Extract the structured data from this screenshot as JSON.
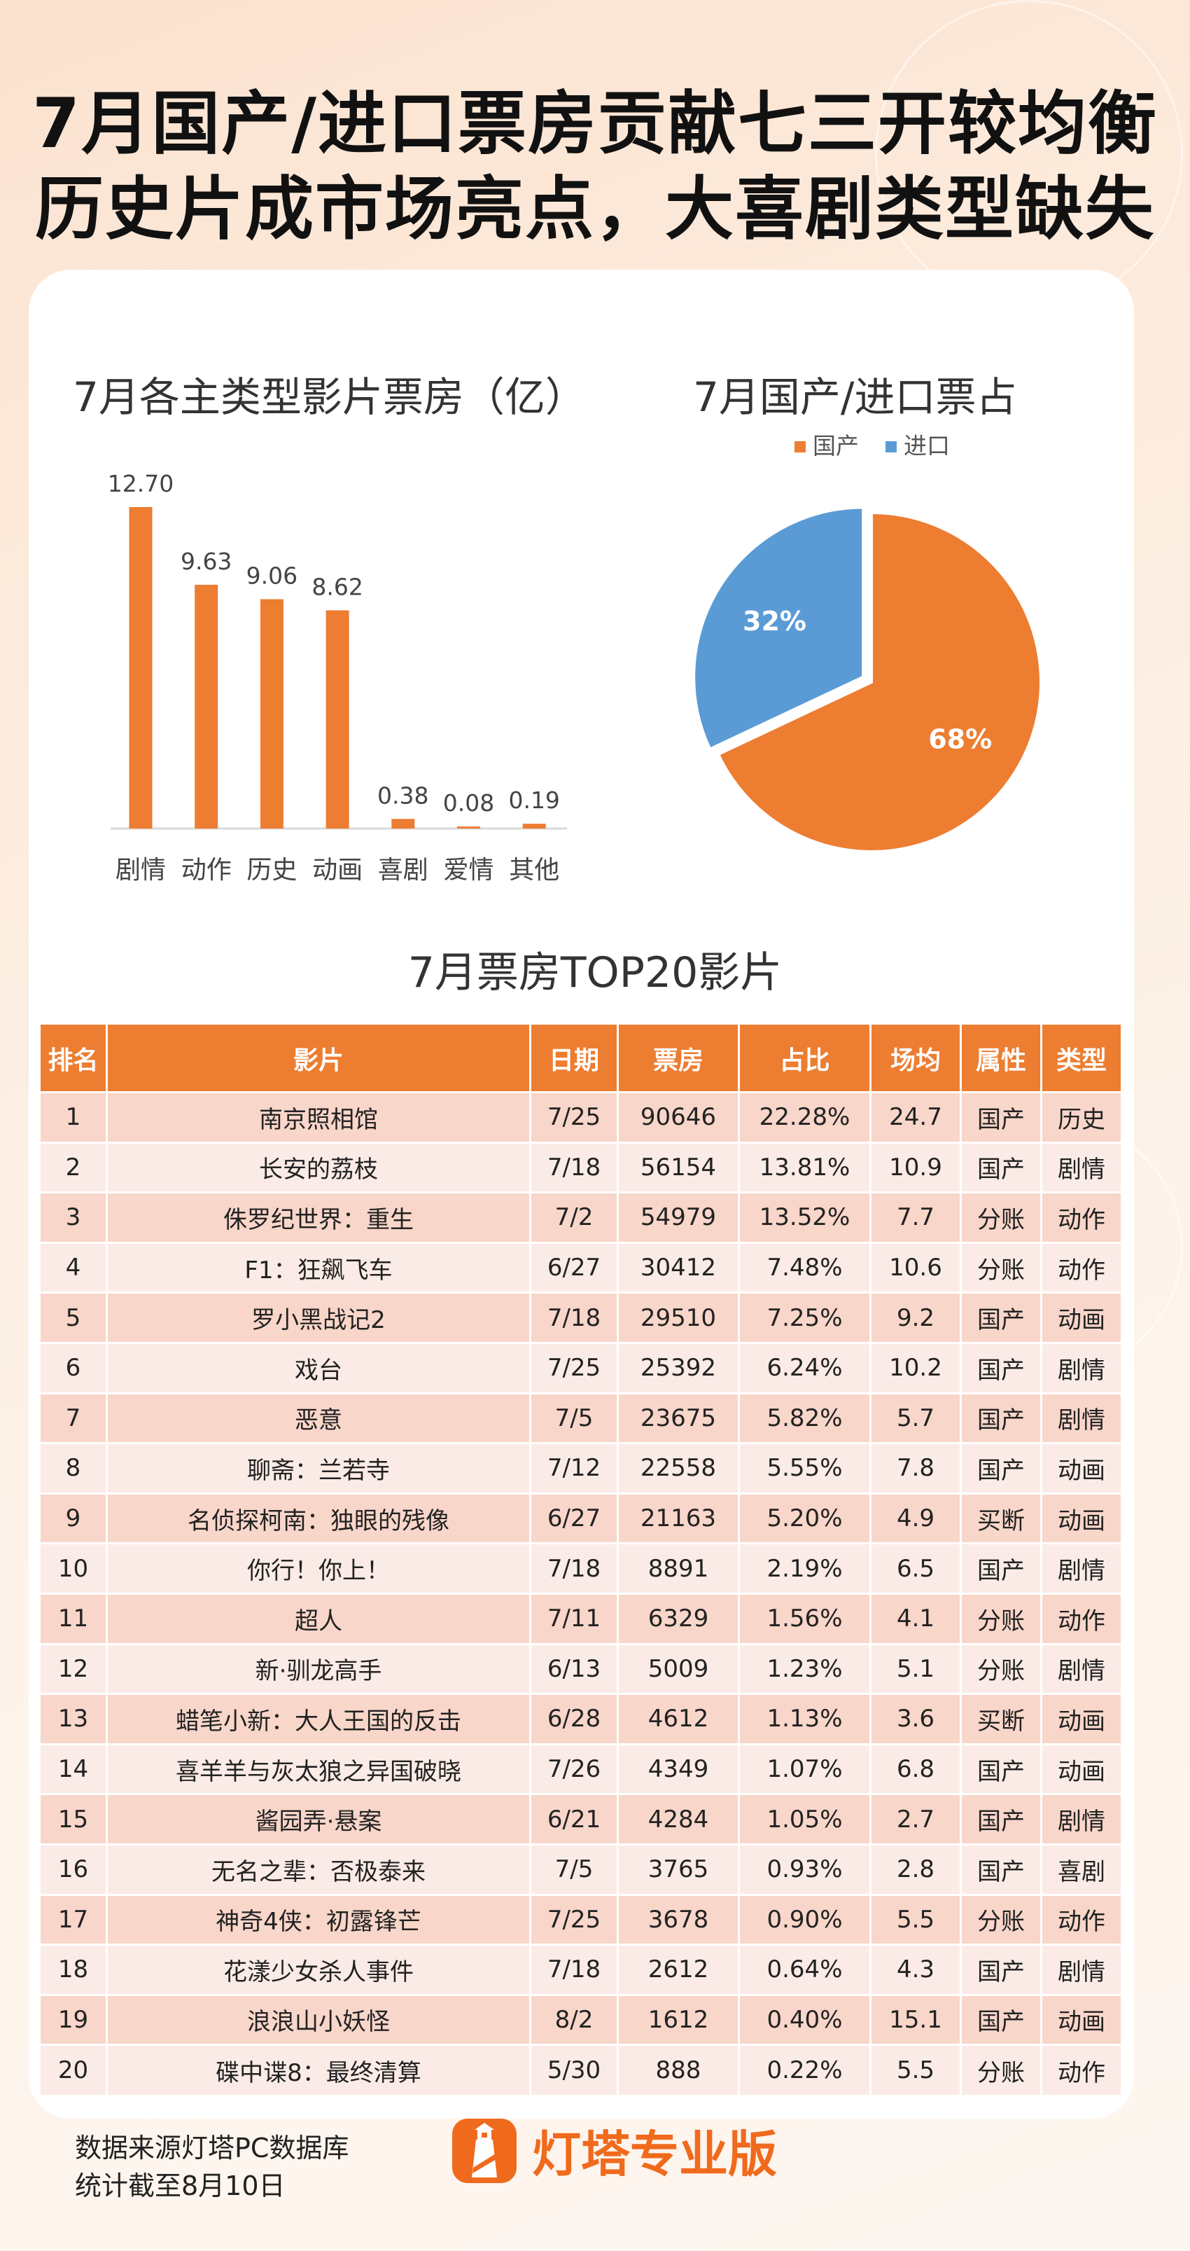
{
  "headline": {
    "line1": "7月国产/进口票房贡献七三开较均衡",
    "line2": "历史片成市场亮点，大喜剧类型缺失"
  },
  "chart_data": [
    {
      "type": "bar",
      "title": "7月各主类型影片票房（亿）",
      "categories": [
        "剧情",
        "动作",
        "历史",
        "动画",
        "喜剧",
        "爱情",
        "其他"
      ],
      "values": [
        12.7,
        9.63,
        9.06,
        8.62,
        0.38,
        0.08,
        0.19
      ],
      "value_labels": [
        "12.70",
        "9.63",
        "9.06",
        "8.62",
        "0.38",
        "0.08",
        "0.19"
      ],
      "ylim": [
        0,
        12.7
      ],
      "grid": false,
      "color": "#ED7D31"
    },
    {
      "type": "pie",
      "title": "7月国产/进口票占",
      "slices": [
        {
          "name": "国产",
          "value": 68,
          "label": "68%",
          "color": "#ED7D31"
        },
        {
          "name": "进口",
          "value": 32,
          "label": "32%",
          "color": "#5B9BD5"
        }
      ],
      "legend": "top"
    }
  ],
  "table": {
    "title": "7月票房TOP20影片",
    "headers": [
      "排名",
      "影片",
      "日期",
      "票房",
      "占比",
      "场均",
      "属性",
      "类型"
    ],
    "rows": [
      [
        "1",
        "南京照相馆",
        "7/25",
        "90646",
        "22.28%",
        "24.7",
        "国产",
        "历史"
      ],
      [
        "2",
        "长安的荔枝",
        "7/18",
        "56154",
        "13.81%",
        "10.9",
        "国产",
        "剧情"
      ],
      [
        "3",
        "侏罗纪世界：重生",
        "7/2",
        "54979",
        "13.52%",
        "7.7",
        "分账",
        "动作"
      ],
      [
        "4",
        "F1：狂飙飞车",
        "6/27",
        "30412",
        "7.48%",
        "10.6",
        "分账",
        "动作"
      ],
      [
        "5",
        "罗小黑战记2",
        "7/18",
        "29510",
        "7.25%",
        "9.2",
        "国产",
        "动画"
      ],
      [
        "6",
        "戏台",
        "7/25",
        "25392",
        "6.24%",
        "10.2",
        "国产",
        "剧情"
      ],
      [
        "7",
        "恶意",
        "7/5",
        "23675",
        "5.82%",
        "5.7",
        "国产",
        "剧情"
      ],
      [
        "8",
        "聊斋：兰若寺",
        "7/12",
        "22558",
        "5.55%",
        "7.8",
        "国产",
        "动画"
      ],
      [
        "9",
        "名侦探柯南：独眼的残像",
        "6/27",
        "21163",
        "5.20%",
        "4.9",
        "买断",
        "动画"
      ],
      [
        "10",
        "你行！你上！",
        "7/18",
        "8891",
        "2.19%",
        "6.5",
        "国产",
        "剧情"
      ],
      [
        "11",
        "超人",
        "7/11",
        "6329",
        "1.56%",
        "4.1",
        "分账",
        "动作"
      ],
      [
        "12",
        "新·驯龙高手",
        "6/13",
        "5009",
        "1.23%",
        "5.1",
        "分账",
        "剧情"
      ],
      [
        "13",
        "蜡笔小新：大人王国的反击",
        "6/28",
        "4612",
        "1.13%",
        "3.6",
        "买断",
        "动画"
      ],
      [
        "14",
        "喜羊羊与灰太狼之异国破晓",
        "7/26",
        "4349",
        "1.07%",
        "6.8",
        "国产",
        "动画"
      ],
      [
        "15",
        "酱园弄·悬案",
        "6/21",
        "4284",
        "1.05%",
        "2.7",
        "国产",
        "剧情"
      ],
      [
        "16",
        "无名之辈：否极泰来",
        "7/5",
        "3765",
        "0.93%",
        "2.8",
        "国产",
        "喜剧"
      ],
      [
        "17",
        "神奇4侠：初露锋芒",
        "7/25",
        "3678",
        "0.90%",
        "5.5",
        "分账",
        "动作"
      ],
      [
        "18",
        "花漾少女杀人事件",
        "7/18",
        "2612",
        "0.64%",
        "4.3",
        "国产",
        "剧情"
      ],
      [
        "19",
        "浪浪山小妖怪",
        "8/2",
        "1612",
        "0.40%",
        "15.1",
        "国产",
        "动画"
      ],
      [
        "20",
        "碟中谍8：最终清算",
        "5/30",
        "888",
        "0.22%",
        "5.5",
        "分账",
        "动作"
      ]
    ]
  },
  "footer": {
    "source": "数据来源灯塔PC数据库",
    "cutoff": "统计截至8月10日"
  },
  "logo": {
    "text": "灯塔专业版",
    "icon": "lighthouse-icon",
    "color": "#F06A1D"
  }
}
